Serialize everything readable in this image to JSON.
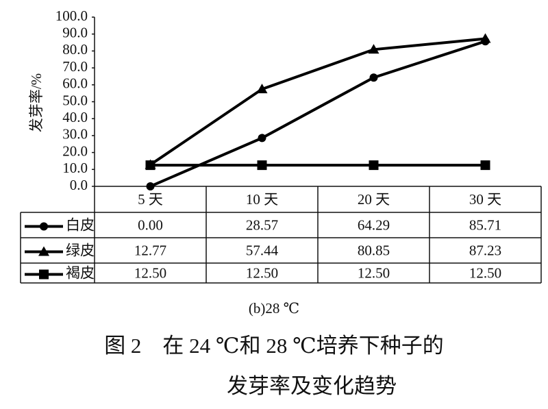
{
  "chart_data": {
    "type": "line",
    "y_label": "发芽率/%",
    "subtitle": "(b)28 ℃",
    "caption": [
      "图 2　在 24 ℃和 28 ℃培养下种子的",
      "发芽率及变化趋势"
    ],
    "categories": [
      "5 天",
      "10 天",
      "20 天",
      "30 天"
    ],
    "ylim": [
      0,
      100
    ],
    "yticks": [
      {
        "value": 0,
        "label": "0.0"
      },
      {
        "value": 10,
        "label": "10.0"
      },
      {
        "value": 20,
        "label": "20.0"
      },
      {
        "value": 30,
        "label": "30.0"
      },
      {
        "value": 40,
        "label": "40.0"
      },
      {
        "value": 50,
        "label": "50.0"
      },
      {
        "value": 60,
        "label": "60.0"
      },
      {
        "value": 70,
        "label": "70.0"
      },
      {
        "value": 80,
        "label": "80.0"
      },
      {
        "value": 90,
        "label": "90.0"
      },
      {
        "value": 100,
        "label": "100.0"
      }
    ],
    "series": [
      {
        "name": "白皮",
        "color": "#000000",
        "marker": "circle",
        "values": [
          0.0,
          28.57,
          64.29,
          85.71
        ],
        "value_labels": [
          "0.00",
          "28.57",
          "64.29",
          "85.71"
        ]
      },
      {
        "name": "绿皮",
        "color": "#000000",
        "marker": "triangle",
        "values": [
          12.77,
          57.44,
          80.85,
          87.23
        ],
        "value_labels": [
          "12.77",
          "57.44",
          "80.85",
          "87.23"
        ]
      },
      {
        "name": "褐皮",
        "color": "#000000",
        "marker": "square",
        "values": [
          12.5,
          12.5,
          12.5,
          12.5
        ],
        "value_labels": [
          "12.50",
          "12.50",
          "12.50",
          "12.50"
        ]
      }
    ]
  }
}
